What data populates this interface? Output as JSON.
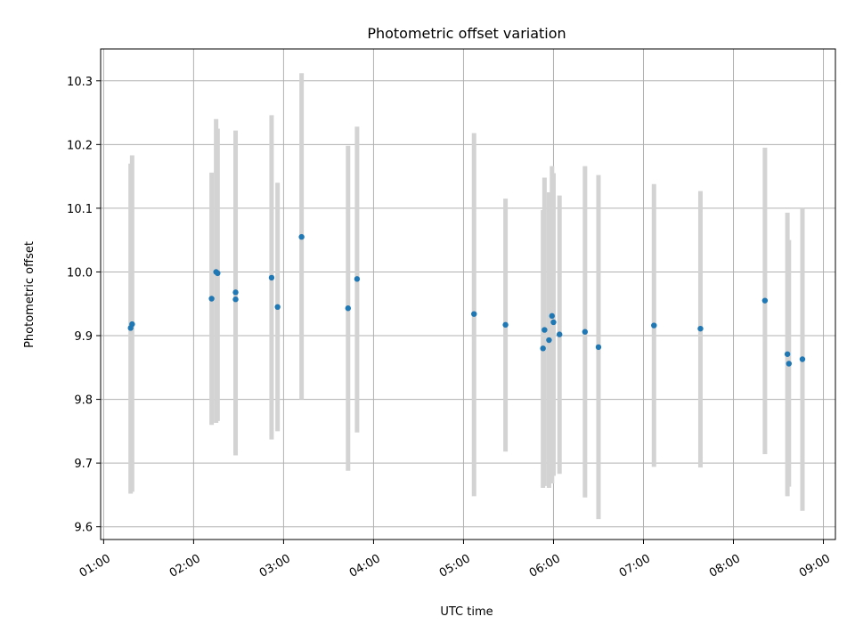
{
  "chart_data": {
    "type": "scatter",
    "title": "Photometric offset variation",
    "xlabel": "UTC time",
    "ylabel": "Photometric offset",
    "x_ticks": [
      "01:00",
      "02:00",
      "03:00",
      "04:00",
      "05:00",
      "06:00",
      "07:00",
      "08:00",
      "09:00"
    ],
    "y_ticks": [
      "9.6",
      "9.7",
      "9.8",
      "9.9",
      "10.0",
      "10.1",
      "10.2",
      "10.3"
    ],
    "xlim": [
      "00:58",
      "09:08"
    ],
    "ylim": [
      9.58,
      10.35
    ],
    "grid": true,
    "colors": {
      "point": "#1f77b4",
      "errorbar": "#d3d3d3"
    },
    "points": [
      {
        "x": "01:18",
        "y": 9.912,
        "ylow": 9.652,
        "yhigh": 10.17
      },
      {
        "x": "01:19",
        "y": 9.918,
        "ylow": 9.655,
        "yhigh": 10.183
      },
      {
        "x": "02:12",
        "y": 9.958,
        "ylow": 9.76,
        "yhigh": 10.156
      },
      {
        "x": "02:15",
        "y": 10.0,
        "ylow": 9.763,
        "yhigh": 10.24
      },
      {
        "x": "02:16",
        "y": 9.998,
        "ylow": 9.766,
        "yhigh": 10.225
      },
      {
        "x": "02:28",
        "y": 9.968,
        "ylow": 9.712,
        "yhigh": 10.222
      },
      {
        "x": "02:28",
        "y": 9.957,
        "ylow": 9.715,
        "yhigh": 10.2
      },
      {
        "x": "02:52",
        "y": 9.991,
        "ylow": 9.737,
        "yhigh": 10.246
      },
      {
        "x": "02:56",
        "y": 9.945,
        "ylow": 9.75,
        "yhigh": 10.14
      },
      {
        "x": "03:12",
        "y": 10.055,
        "ylow": 9.8,
        "yhigh": 10.312
      },
      {
        "x": "03:43",
        "y": 9.943,
        "ylow": 9.688,
        "yhigh": 10.198
      },
      {
        "x": "03:49",
        "y": 9.989,
        "ylow": 9.748,
        "yhigh": 10.228
      },
      {
        "x": "05:07",
        "y": 9.934,
        "ylow": 9.648,
        "yhigh": 10.218
      },
      {
        "x": "05:28",
        "y": 9.917,
        "ylow": 9.718,
        "yhigh": 10.115
      },
      {
        "x": "05:53",
        "y": 9.88,
        "ylow": 9.661,
        "yhigh": 10.097
      },
      {
        "x": "05:54",
        "y": 9.909,
        "ylow": 9.664,
        "yhigh": 10.148
      },
      {
        "x": "05:57",
        "y": 9.893,
        "ylow": 9.661,
        "yhigh": 10.125
      },
      {
        "x": "05:59",
        "y": 9.931,
        "ylow": 9.668,
        "yhigh": 10.166
      },
      {
        "x": "06:00",
        "y": 9.921,
        "ylow": 9.68,
        "yhigh": 10.155
      },
      {
        "x": "06:04",
        "y": 9.902,
        "ylow": 9.683,
        "yhigh": 10.12
      },
      {
        "x": "06:21",
        "y": 9.906,
        "ylow": 9.646,
        "yhigh": 10.166
      },
      {
        "x": "06:30",
        "y": 9.882,
        "ylow": 9.612,
        "yhigh": 10.152
      },
      {
        "x": "07:07",
        "y": 9.916,
        "ylow": 9.694,
        "yhigh": 10.138
      },
      {
        "x": "07:38",
        "y": 9.911,
        "ylow": 9.693,
        "yhigh": 10.127
      },
      {
        "x": "08:21",
        "y": 9.955,
        "ylow": 9.714,
        "yhigh": 10.195
      },
      {
        "x": "08:36",
        "y": 9.871,
        "ylow": 9.648,
        "yhigh": 10.093
      },
      {
        "x": "08:37",
        "y": 9.856,
        "ylow": 9.663,
        "yhigh": 10.05
      },
      {
        "x": "08:46",
        "y": 9.863,
        "ylow": 9.625,
        "yhigh": 10.1
      }
    ]
  }
}
